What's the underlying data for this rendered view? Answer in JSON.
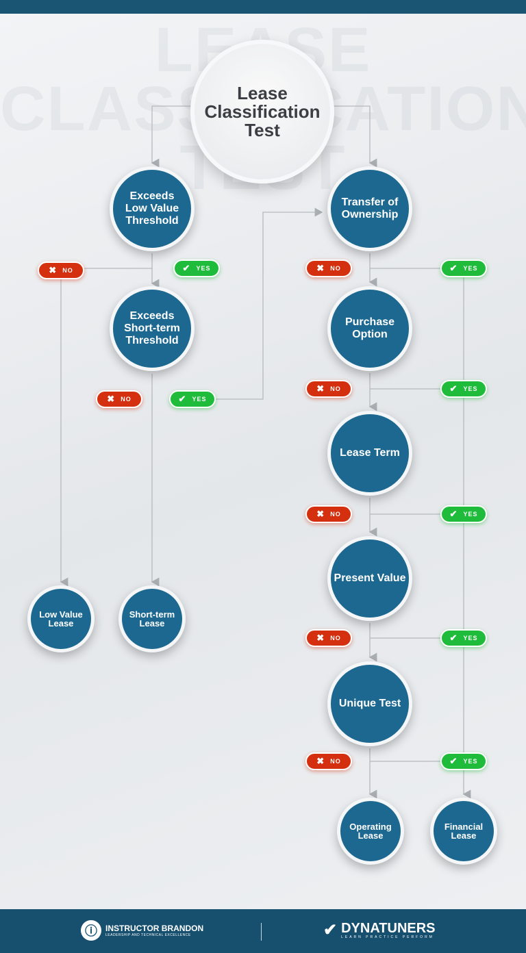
{
  "watermark": "LEASE\nCLASSIFICATION\nTEST",
  "title": "Lease\nClassification\nTest",
  "nodes": {
    "low_value": "Exceeds\nLow Value\nThreshold",
    "short_term": "Exceeds\nShort-term\nThreshold",
    "transfer": "Transfer of\nOwnership",
    "purchase": "Purchase\nOption",
    "lease_term": "Lease Term",
    "present_value": "Present Value",
    "unique": "Unique Test",
    "low_value_lease": "Low Value\nLease",
    "short_term_lease": "Short-term\nLease",
    "operating_lease": "Operating\nLease",
    "financial_lease": "Financial\nLease"
  },
  "badges": {
    "no": "NO",
    "yes": "YES",
    "no_icon": "x-icon",
    "yes_icon": "check-icon"
  },
  "colors": {
    "node": "#1c6891",
    "no": "#d4300f",
    "yes": "#1fbb3a",
    "footer": "#17506e"
  },
  "footer": {
    "brand1_name": "INSTRUCTOR BRANDON",
    "brand1_tagline": "LEADERSHIP AND TECHNICAL EXCELLENCE",
    "brand2_name": "DYNATUNERS",
    "brand2_tagline": "LEARN PRACTICE PERFORM"
  }
}
